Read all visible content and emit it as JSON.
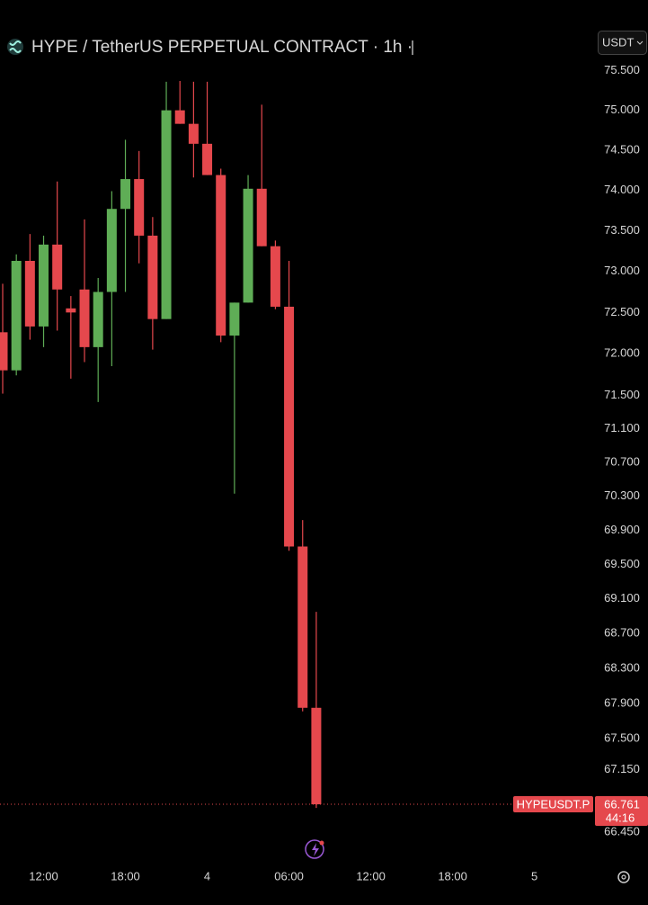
{
  "chart_data": {
    "type": "candlestick",
    "title": "HYPE / TetherUS PERPETUAL CONTRACT · 1h ·",
    "currency": "USDT",
    "log_scale": true,
    "grid": false,
    "up_color": "#5fad56",
    "down_color": "#e5484d",
    "categories": [
      null,
      null,
      null,
      "12:00",
      null,
      null,
      null,
      null,
      null,
      "18:00",
      null,
      null,
      null,
      null,
      null,
      "4",
      null,
      null,
      null,
      null,
      null,
      "06:00",
      null,
      null,
      null,
      null,
      null,
      "12:00",
      null,
      null,
      null,
      null,
      null,
      "18:00",
      null,
      null,
      null,
      null,
      null,
      "5",
      null,
      null,
      null,
      null,
      null,
      null
    ],
    "open": [
      72.26,
      71.8,
      73.13,
      72.33,
      73.33,
      72.55,
      72.78,
      72.08,
      72.75,
      73.77,
      74.14,
      73.44,
      72.42,
      75.0,
      74.83,
      74.58,
      74.19,
      72.22,
      72.62,
      74.02,
      73.31,
      72.57,
      69.71,
      67.85,
      null,
      null,
      null,
      null,
      null,
      null,
      null,
      null,
      null,
      null,
      null,
      null,
      null,
      null,
      null,
      null,
      null,
      null,
      null,
      null,
      null,
      null
    ],
    "high": [
      72.85,
      73.21,
      73.46,
      73.44,
      74.11,
      72.7,
      73.64,
      72.92,
      73.99,
      74.63,
      74.49,
      73.67,
      75.36,
      75.37,
      75.36,
      75.36,
      74.27,
      72.62,
      74.19,
      75.07,
      73.38,
      73.13,
      70.02,
      68.95,
      null,
      null,
      null,
      null,
      null,
      null,
      null,
      null,
      null,
      null,
      null,
      null,
      null,
      null,
      null,
      null,
      null,
      null,
      null,
      null,
      null,
      null
    ],
    "low": [
      71.52,
      71.74,
      72.17,
      72.08,
      72.28,
      71.7,
      71.9,
      71.42,
      71.85,
      72.75,
      73.1,
      72.05,
      72.42,
      74.83,
      74.16,
      74.19,
      72.14,
      70.33,
      72.62,
      73.31,
      72.54,
      69.66,
      67.81,
      66.72,
      null,
      null,
      null,
      null,
      null,
      null,
      null,
      null,
      null,
      null,
      null,
      null,
      null,
      null,
      null,
      null,
      null,
      null,
      null,
      null,
      null,
      null
    ],
    "close": [
      71.8,
      73.13,
      72.33,
      73.33,
      72.78,
      72.5,
      72.08,
      72.75,
      73.77,
      74.14,
      73.44,
      72.42,
      75.0,
      74.83,
      74.58,
      74.19,
      72.22,
      72.62,
      74.02,
      73.31,
      72.57,
      69.71,
      67.85,
      66.761,
      null,
      null,
      null,
      null,
      null,
      null,
      null,
      null,
      null,
      null,
      null,
      null,
      null,
      null,
      null,
      null,
      null,
      null,
      null,
      null,
      null,
      null
    ],
    "ylim": [
      66.15,
      76.4
    ],
    "yticks": [
      {
        "value": 75.5,
        "label": "75.500"
      },
      {
        "value": 75,
        "label": "75.000"
      },
      {
        "value": 74.5,
        "label": "74.500"
      },
      {
        "value": 74,
        "label": "74.000"
      },
      {
        "value": 73.5,
        "label": "73.500"
      },
      {
        "value": 73,
        "label": "73.000"
      },
      {
        "value": 72.5,
        "label": "72.500"
      },
      {
        "value": 72,
        "label": "72.000"
      },
      {
        "value": 71.5,
        "label": "71.500"
      },
      {
        "value": 71.1,
        "label": "71.100"
      },
      {
        "value": 70.7,
        "label": "70.700"
      },
      {
        "value": 70.3,
        "label": "70.300"
      },
      {
        "value": 69.9,
        "label": "69.900"
      },
      {
        "value": 69.5,
        "label": "69.500"
      },
      {
        "value": 69.1,
        "label": "69.100"
      },
      {
        "value": 68.7,
        "label": "68.700"
      },
      {
        "value": 68.3,
        "label": "68.300"
      },
      {
        "value": 67.9,
        "label": "67.900"
      },
      {
        "value": 67.5,
        "label": "67.500"
      },
      {
        "value": 67.15,
        "label": "67.150"
      },
      {
        "value": 66.45,
        "label": "66.450"
      }
    ],
    "last_price": {
      "symbol": "HYPEUSDT.P",
      "value": 66.761,
      "countdown": "44:16"
    }
  }
}
